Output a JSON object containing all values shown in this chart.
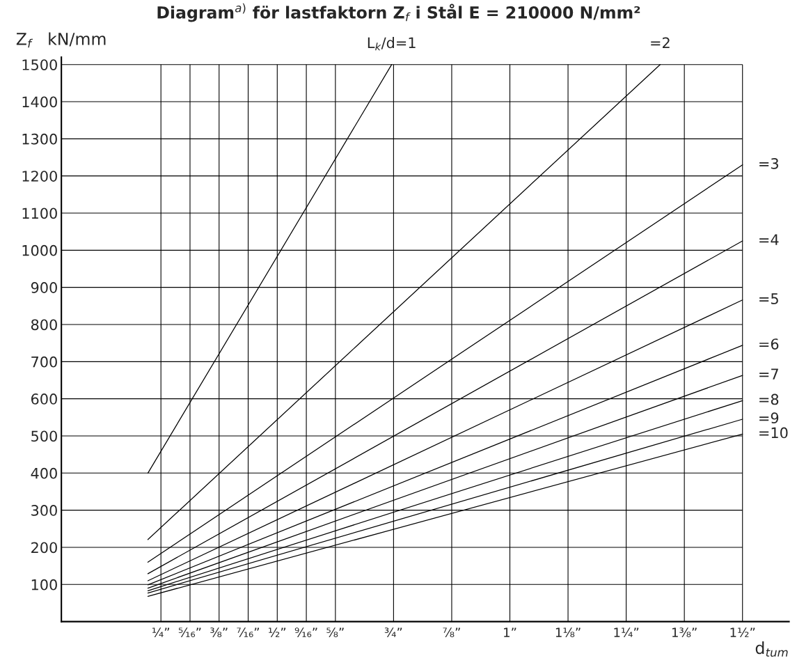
{
  "chart_data": {
    "type": "line",
    "title": "Diagram$^{a)}$ för lastfaktorn Z$_{f}$ i Stål E = 210000 N/mm²",
    "xlabel": "d$_{tum}$",
    "ylabel": "Z$_{f}$   kN/mm",
    "xlim": [
      0.036,
      1.6
    ],
    "ylim": [
      0,
      1520
    ],
    "xticks": [
      {
        "value": 0.25,
        "label": "¼”"
      },
      {
        "value": 0.3125,
        "label": "⁵⁄₁₆”"
      },
      {
        "value": 0.375,
        "label": "⅜”"
      },
      {
        "value": 0.4375,
        "label": "⁷⁄₁₆”"
      },
      {
        "value": 0.5,
        "label": "½”"
      },
      {
        "value": 0.5625,
        "label": "⁹⁄₁₆”"
      },
      {
        "value": 0.625,
        "label": "⅝”"
      },
      {
        "value": 0.75,
        "label": "¾”"
      },
      {
        "value": 0.875,
        "label": "⅞”"
      },
      {
        "value": 1,
        "label": "1”"
      },
      {
        "value": 1.125,
        "label": "1⅛”"
      },
      {
        "value": 1.25,
        "label": "1¼”"
      },
      {
        "value": 1.375,
        "label": "1⅜”"
      },
      {
        "value": 1.5,
        "label": "1½”"
      }
    ],
    "yticks": [
      100,
      200,
      300,
      400,
      500,
      600,
      700,
      800,
      900,
      1000,
      1100,
      1200,
      1300,
      1400,
      1500
    ],
    "grid": true,
    "legend": false,
    "marker": "none",
    "line_style": "solid",
    "series": [
      {
        "name": "L$_{k}$/d=1",
        "color": "#000000",
        "x": [
          0.222,
          0.746
        ],
        "values": [
          400,
          1500
        ]
      },
      {
        "name": "=2",
        "color": "#000000",
        "x": [
          0.222,
          1.323
        ],
        "values": [
          221,
          1500
        ]
      },
      {
        "name": "=3",
        "color": "#000000",
        "x": [
          0.222,
          1.5
        ],
        "values": [
          160,
          1230
        ]
      },
      {
        "name": "=4",
        "color": "#000000",
        "x": [
          0.222,
          1.5
        ],
        "values": [
          129,
          1025
        ]
      },
      {
        "name": "=5",
        "color": "#000000",
        "x": [
          0.222,
          1.5
        ],
        "values": [
          110,
          866
        ]
      },
      {
        "name": "=6",
        "color": "#000000",
        "x": [
          0.222,
          1.5
        ],
        "values": [
          99,
          744
        ]
      },
      {
        "name": "=7",
        "color": "#000000",
        "x": [
          0.222,
          1.5
        ],
        "values": [
          90,
          663
        ]
      },
      {
        "name": "=8",
        "color": "#000000",
        "x": [
          0.222,
          1.5
        ],
        "values": [
          83,
          595
        ]
      },
      {
        "name": "=9",
        "color": "#000000",
        "x": [
          0.222,
          1.5
        ],
        "values": [
          77,
          545
        ]
      },
      {
        "name": "=10",
        "color": "#000000",
        "x": [
          0.222,
          1.5
        ],
        "values": [
          68,
          505
        ]
      }
    ]
  }
}
